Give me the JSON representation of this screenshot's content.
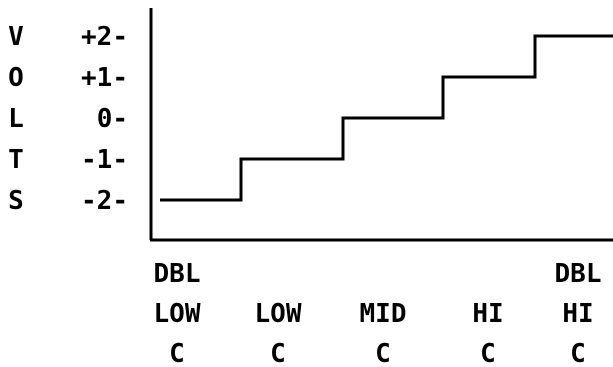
{
  "chart_data": {
    "type": "line",
    "step": true,
    "ylabel": "VOLTS",
    "yticks": [
      {
        "value": 2,
        "label": "+2-"
      },
      {
        "value": 1,
        "label": "+1-"
      },
      {
        "value": 0,
        "label": "0-"
      },
      {
        "value": -1,
        "label": "-1-"
      },
      {
        "value": -2,
        "label": "-2-"
      }
    ],
    "categories": [
      {
        "lines": [
          "DBL",
          "LOW",
          "C"
        ]
      },
      {
        "lines": [
          "",
          "LOW",
          "C"
        ]
      },
      {
        "lines": [
          "",
          "MID",
          "C"
        ]
      },
      {
        "lines": [
          "",
          "HI",
          "C"
        ]
      },
      {
        "lines": [
          "DBL",
          "HI",
          "C"
        ]
      }
    ],
    "series": [
      {
        "values": [
          -2,
          -1,
          0,
          1,
          2
        ]
      }
    ],
    "ylim": [
      -3,
      2.5
    ],
    "grid": false,
    "colors": {
      "line": "#000000",
      "axis": "#000000",
      "background": "#ffffff"
    }
  }
}
